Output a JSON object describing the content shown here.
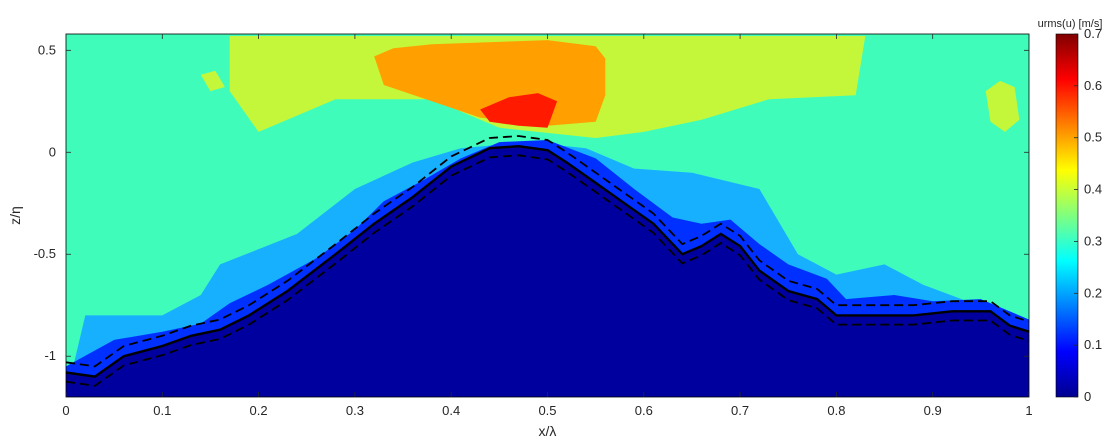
{
  "chart_data": {
    "type": "heatmap",
    "title": "",
    "xlabel": "x/λ",
    "ylabel": "z/η",
    "xlim": [
      0,
      1
    ],
    "ylim": [
      -1.2,
      0.58
    ],
    "xticks": [
      0,
      0.1,
      0.2,
      0.3,
      0.4,
      0.5,
      0.6,
      0.7,
      0.8,
      0.9,
      1
    ],
    "xtick_labels": [
      "0",
      "0.1",
      "0.2",
      "0.3",
      "0.4",
      "0.5",
      "0.6",
      "0.7",
      "0.8",
      "0.9",
      "1"
    ],
    "yticks": [
      0.5,
      0,
      -0.5,
      -1
    ],
    "ytick_labels": [
      "0.5",
      "0",
      "-0.5",
      "-1"
    ],
    "colorbar": {
      "title": "urms(u) [m/s]",
      "range": [
        0,
        0.7
      ],
      "ticks": [
        0,
        0.1,
        0.2,
        0.3,
        0.4,
        0.5,
        0.6,
        0.7
      ],
      "tick_labels": [
        "0",
        "0.1",
        "0.2",
        "0.3",
        "0.4",
        "0.5",
        "0.6",
        "0.7"
      ],
      "colormap": "jet"
    },
    "contour_levels": [
      {
        "level": 0.35,
        "color": "#c4f73a"
      },
      {
        "level": 0.55,
        "color": "#ffa000"
      },
      {
        "level": 0.65,
        "color": "#ff1a00"
      }
    ],
    "regions": {
      "yellow": [
        [
          0.17,
          0.57
        ],
        [
          0.83,
          0.57
        ],
        [
          0.82,
          0.28
        ],
        [
          0.73,
          0.26
        ],
        [
          0.66,
          0.16
        ],
        [
          0.6,
          0.1
        ],
        [
          0.55,
          0.07
        ],
        [
          0.45,
          0.12
        ],
        [
          0.38,
          0.26
        ],
        [
          0.28,
          0.26
        ],
        [
          0.2,
          0.1
        ],
        [
          0.17,
          0.3
        ]
      ],
      "orange": [
        [
          0.32,
          0.47
        ],
        [
          0.34,
          0.51
        ],
        [
          0.38,
          0.53
        ],
        [
          0.5,
          0.55
        ],
        [
          0.55,
          0.52
        ],
        [
          0.56,
          0.46
        ],
        [
          0.56,
          0.28
        ],
        [
          0.55,
          0.15
        ],
        [
          0.5,
          0.13
        ],
        [
          0.43,
          0.17
        ],
        [
          0.38,
          0.25
        ],
        [
          0.33,
          0.33
        ]
      ],
      "red": [
        [
          0.43,
          0.21
        ],
        [
          0.46,
          0.27
        ],
        [
          0.49,
          0.29
        ],
        [
          0.51,
          0.25
        ],
        [
          0.5,
          0.12
        ],
        [
          0.47,
          0.13
        ],
        [
          0.44,
          0.15
        ]
      ],
      "light_blue": [
        [
          0.02,
          -0.8
        ],
        [
          0.1,
          -0.8
        ],
        [
          0.14,
          -0.7
        ],
        [
          0.16,
          -0.55
        ],
        [
          0.24,
          -0.4
        ],
        [
          0.3,
          -0.18
        ],
        [
          0.36,
          -0.05
        ],
        [
          0.41,
          0.02
        ],
        [
          0.48,
          0.05
        ],
        [
          0.54,
          0.02
        ],
        [
          0.59,
          -0.08
        ],
        [
          0.65,
          -0.1
        ],
        [
          0.72,
          -0.18
        ],
        [
          0.76,
          -0.5
        ],
        [
          0.8,
          -0.6
        ],
        [
          0.85,
          -0.55
        ],
        [
          0.89,
          -0.65
        ],
        [
          0.93,
          -0.72
        ],
        [
          0.97,
          -0.8
        ],
        [
          1.0,
          -0.88
        ]
      ],
      "blue": [
        [
          0.0,
          -1.05
        ],
        [
          0.05,
          -0.92
        ],
        [
          0.1,
          -0.88
        ],
        [
          0.14,
          -0.84
        ],
        [
          0.17,
          -0.74
        ],
        [
          0.21,
          -0.65
        ],
        [
          0.26,
          -0.52
        ],
        [
          0.3,
          -0.38
        ],
        [
          0.33,
          -0.24
        ],
        [
          0.37,
          -0.14
        ],
        [
          0.41,
          -0.03
        ],
        [
          0.45,
          0.05
        ],
        [
          0.5,
          0.06
        ],
        [
          0.55,
          -0.03
        ],
        [
          0.59,
          -0.18
        ],
        [
          0.63,
          -0.32
        ],
        [
          0.66,
          -0.35
        ],
        [
          0.69,
          -0.33
        ],
        [
          0.72,
          -0.45
        ],
        [
          0.75,
          -0.55
        ],
        [
          0.79,
          -0.62
        ],
        [
          0.81,
          -0.72
        ],
        [
          0.86,
          -0.7
        ],
        [
          0.9,
          -0.73
        ],
        [
          0.95,
          -0.72
        ],
        [
          1.0,
          -0.82
        ]
      ],
      "surface": [
        [
          0.0,
          -1.08
        ],
        [
          0.03,
          -1.1
        ],
        [
          0.06,
          -1.0
        ],
        [
          0.1,
          -0.95
        ],
        [
          0.13,
          -0.9
        ],
        [
          0.16,
          -0.87
        ],
        [
          0.19,
          -0.8
        ],
        [
          0.23,
          -0.68
        ],
        [
          0.28,
          -0.5
        ],
        [
          0.32,
          -0.35
        ],
        [
          0.36,
          -0.22
        ],
        [
          0.4,
          -0.07
        ],
        [
          0.44,
          0.02
        ],
        [
          0.47,
          0.03
        ],
        [
          0.5,
          0.01
        ],
        [
          0.52,
          -0.05
        ],
        [
          0.55,
          -0.15
        ],
        [
          0.58,
          -0.25
        ],
        [
          0.61,
          -0.35
        ],
        [
          0.64,
          -0.5
        ],
        [
          0.66,
          -0.46
        ],
        [
          0.68,
          -0.4
        ],
        [
          0.7,
          -0.46
        ],
        [
          0.72,
          -0.58
        ],
        [
          0.75,
          -0.68
        ],
        [
          0.78,
          -0.72
        ],
        [
          0.8,
          -0.8
        ],
        [
          0.84,
          -0.8
        ],
        [
          0.88,
          -0.8
        ],
        [
          0.92,
          -0.78
        ],
        [
          0.96,
          -0.78
        ],
        [
          0.98,
          -0.85
        ],
        [
          1.0,
          -0.88
        ]
      ]
    },
    "edge_patches": {
      "right_yellow": [
        [
          0.955,
          0.3
        ],
        [
          0.97,
          0.35
        ],
        [
          0.985,
          0.32
        ],
        [
          0.99,
          0.16
        ],
        [
          0.975,
          0.1
        ],
        [
          0.96,
          0.15
        ]
      ],
      "left_yellow": [
        [
          0.14,
          0.38
        ],
        [
          0.155,
          0.4
        ],
        [
          0.165,
          0.32
        ],
        [
          0.15,
          0.3
        ]
      ]
    },
    "colors": {
      "background": "#3ffcbb",
      "dark": "#00009e",
      "surface_line": "#000000"
    }
  }
}
